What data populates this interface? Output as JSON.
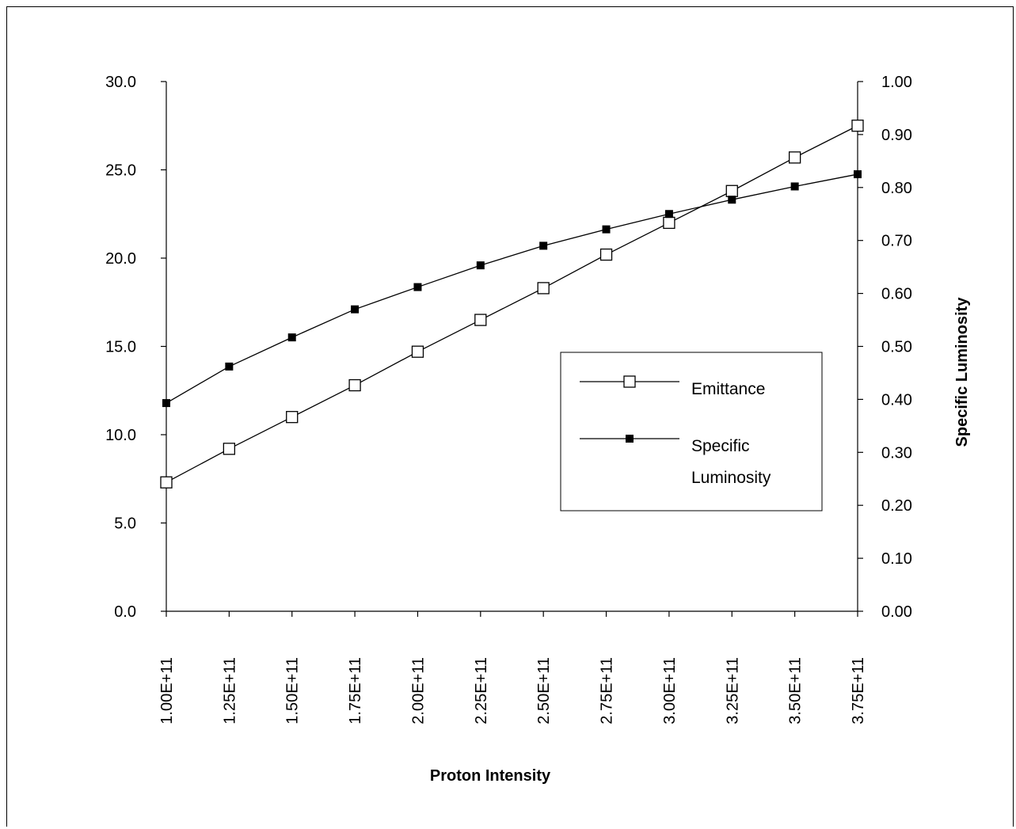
{
  "chart_data": {
    "type": "line",
    "title": "",
    "xlabel": "Proton Intensity",
    "ylabel_left": "",
    "ylabel_right": "Specific Luminosity",
    "x_ticks": [
      "1.00E+11",
      "1.25E+11",
      "1.50E+11",
      "1.75E+11",
      "2.00E+11",
      "2.25E+11",
      "2.50E+11",
      "2.75E+11",
      "3.00E+11",
      "3.25E+11",
      "3.50E+11",
      "3.75E+11"
    ],
    "x": [
      100000000000.0,
      125000000000.0,
      150000000000.0,
      175000000000.0,
      200000000000.0,
      225000000000.0,
      250000000000.0,
      275000000000.0,
      300000000000.0,
      325000000000.0,
      350000000000.0,
      375000000000.0
    ],
    "y_left_ticks": [
      "0.0",
      "5.0",
      "10.0",
      "15.0",
      "20.0",
      "25.0",
      "30.0"
    ],
    "y_left_range": [
      0,
      30
    ],
    "y_right_ticks": [
      "0.00",
      "0.10",
      "0.20",
      "0.30",
      "0.40",
      "0.50",
      "0.60",
      "0.70",
      "0.80",
      "0.90",
      "1.00"
    ],
    "y_right_range": [
      0,
      1.0
    ],
    "legend_position": "right-center",
    "grid": false,
    "series": [
      {
        "name": "Emittance",
        "axis": "left",
        "marker": "open-square",
        "color": "#000000",
        "values": [
          7.3,
          9.2,
          11.0,
          12.8,
          14.7,
          16.5,
          18.3,
          20.2,
          22.0,
          23.8,
          25.7,
          27.5
        ]
      },
      {
        "name": "Specific Luminosity",
        "axis": "right",
        "marker": "filled-square",
        "color": "#000000",
        "values": [
          0.393,
          0.462,
          0.517,
          0.57,
          0.612,
          0.653,
          0.69,
          0.721,
          0.75,
          0.777,
          0.802,
          0.825
        ]
      }
    ],
    "legend_labels": {
      "emittance": "Emittance",
      "specific_line1": "Specific",
      "specific_line2": "Luminosity"
    }
  }
}
